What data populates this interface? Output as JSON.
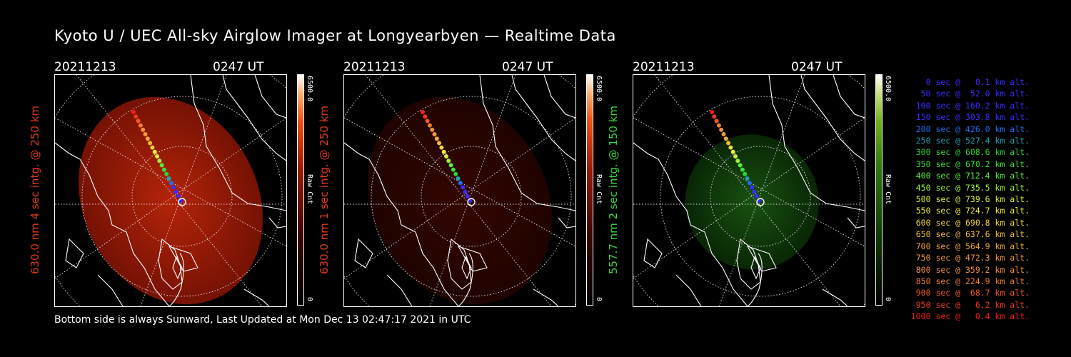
{
  "title": "Kyoto U / UEC All-sky Airglow Imager at Longyearbyen — Realtime Data",
  "panels": [
    {
      "date": "20211213",
      "time": "0247 UT",
      "label": "630.0 nm 4 sec intg. @ 250 km",
      "label_color": "#e03a1a",
      "cmax": "6500.0",
      "cmin": "0",
      "unit": "Raw Cnt",
      "tint": "red"
    },
    {
      "date": "20211213",
      "time": "0247 UT",
      "label": "630.0 nm 1 sec intg. @ 250 km",
      "label_color": "#e03a1a",
      "cmax": "6500.0",
      "cmin": "0",
      "unit": "Raw Cnt",
      "tint": "darkred"
    },
    {
      "date": "20211213",
      "time": "0247 UT",
      "label": "557.7 nm 2 sec intg. @ 150 km",
      "label_color": "#3bd83b",
      "cmax": "6500.0",
      "cmin": "0",
      "unit": "Raw Cnt",
      "tint": "green"
    }
  ],
  "footer": "Bottom side is always Sunward, Last Updated at Mon Dec 13 02:47:17 2021 in UTC",
  "legend": [
    {
      "text": "0 sec @   0.1 km alt.",
      "color": "#3a2cff"
    },
    {
      "text": "50 sec @  52.0 km alt.",
      "color": "#3a2cff"
    },
    {
      "text": "100 sec @ 160.2 km alt.",
      "color": "#3a2cff"
    },
    {
      "text": "150 sec @ 303.8 km alt.",
      "color": "#3a2cff"
    },
    {
      "text": "200 sec @ 426.0 km alt.",
      "color": "#1f6ff0"
    },
    {
      "text": "250 sec @ 527.4 km alt.",
      "color": "#1fa0b0"
    },
    {
      "text": "300 sec @ 608.6 km alt.",
      "color": "#2fd33a"
    },
    {
      "text": "350 sec @ 670.2 km alt.",
      "color": "#39e03a"
    },
    {
      "text": "400 sec @ 712.4 km alt.",
      "color": "#56ee3a"
    },
    {
      "text": "450 sec @ 735.5 km alt.",
      "color": "#9ef03a"
    },
    {
      "text": "500 sec @ 739.6 km alt.",
      "color": "#d8f03a"
    },
    {
      "text": "550 sec @ 724.7 km alt.",
      "color": "#f0f03a"
    },
    {
      "text": "600 sec @ 690.8 km alt.",
      "color": "#f0d83a"
    },
    {
      "text": "650 sec @ 637.6 km alt.",
      "color": "#f0c03a"
    },
    {
      "text": "700 sec @ 564.9 km alt.",
      "color": "#f0a83a"
    },
    {
      "text": "750 sec @ 472.3 km alt.",
      "color": "#f09a3a"
    },
    {
      "text": "800 sec @ 359.2 km alt.",
      "color": "#f0903a"
    },
    {
      "text": "850 sec @ 224.9 km alt.",
      "color": "#f08030"
    },
    {
      "text": "900 sec @  68.7 km alt.",
      "color": "#f05a2a"
    },
    {
      "text": "950 sec @   6.2 km alt.",
      "color": "#f03a1a"
    },
    {
      "text": "1000 sec @   0.4 km alt.",
      "color": "#f0201a"
    }
  ]
}
